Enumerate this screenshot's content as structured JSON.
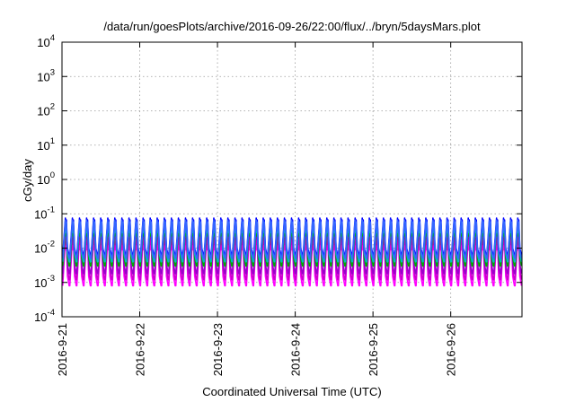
{
  "chart_data": {
    "type": "line",
    "title": "/data/run/goesPlots/archive/2016-09-26/22:00/flux/../bryn/5daysMars.plot",
    "xlabel": "Coordinated Universal Time (UTC)",
    "ylabel": "cGy/day",
    "yscale": "log",
    "ylim": [
      0.0001,
      10000
    ],
    "y_ticks": [
      {
        "value": 0.0001,
        "base": "10",
        "exp": "-4"
      },
      {
        "value": 0.001,
        "base": "10",
        "exp": "-3"
      },
      {
        "value": 0.01,
        "base": "10",
        "exp": "-2"
      },
      {
        "value": 0.1,
        "base": "10",
        "exp": "-1"
      },
      {
        "value": 1,
        "base": "10",
        "exp": "0"
      },
      {
        "value": 10,
        "base": "10",
        "exp": "1"
      },
      {
        "value": 100,
        "base": "10",
        "exp": "2"
      },
      {
        "value": 1000,
        "base": "10",
        "exp": "3"
      },
      {
        "value": 10000,
        "base": "10",
        "exp": "4"
      }
    ],
    "xlim": [
      "2016-09-21T00:00",
      "2016-09-26T22:00"
    ],
    "x_ticks": [
      "2016-9-21",
      "2016-9-22",
      "2016-9-23",
      "2016-9-24",
      "2016-9-25",
      "2016-9-26"
    ],
    "grid": true,
    "legend": "none",
    "pattern": {
      "cycles_per_day": 11,
      "description": "repeating sawtooth bursts"
    },
    "series": [
      {
        "color": "#ff00ff",
        "peak": 0.02,
        "trough": 0.0008
      },
      {
        "color": "#cc00cc",
        "peak": 0.028,
        "trough": 0.0012
      },
      {
        "color": "#9900cc",
        "peak": 0.04,
        "trough": 0.0018
      },
      {
        "color": "#00aa00",
        "peak": 0.045,
        "trough": 0.003
      },
      {
        "color": "#00bbbb",
        "peak": 0.055,
        "trough": 0.004
      },
      {
        "color": "#0000ff",
        "peak": 0.075,
        "trough": 0.006
      },
      {
        "color": "#3366ff",
        "peak": 0.065,
        "trough": 0.005
      }
    ]
  }
}
